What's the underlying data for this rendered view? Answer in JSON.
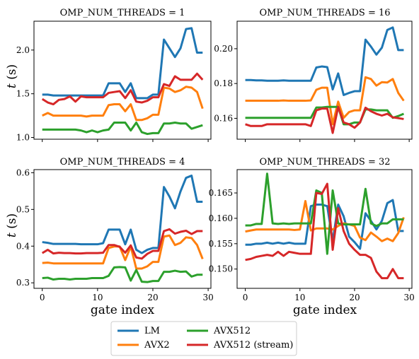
{
  "colors": {
    "LM": "#1f77b4",
    "AVX2": "#ff7f0e",
    "AVX512": "#2ca02c",
    "AVX512 (stream)": "#d62728"
  },
  "legend": {
    "items": [
      "LM",
      "AVX2",
      "AVX512",
      "AVX512 (stream)"
    ]
  },
  "chart_data": [
    {
      "type": "line",
      "title": "OMP_NUM_THREADS = 1",
      "ylabel": "t (s)",
      "xlabel": "",
      "xlim": [
        -1.5,
        30.5
      ],
      "ylim": [
        0.98,
        2.33
      ],
      "xticks": [
        0,
        10,
        20,
        30
      ],
      "yticks": [
        1.0,
        1.5,
        2.0
      ],
      "ytick_labels": [
        "1.0",
        "1.5",
        "2.0"
      ],
      "show_xtick_labels": false,
      "x": [
        0,
        1,
        2,
        3,
        4,
        5,
        6,
        7,
        8,
        9,
        10,
        11,
        12,
        13,
        14,
        15,
        16,
        17,
        18,
        19,
        20,
        21,
        22,
        23,
        24,
        25,
        26,
        27,
        28,
        29
      ],
      "series": [
        {
          "name": "LM",
          "values": [
            1.49,
            1.49,
            1.48,
            1.48,
            1.48,
            1.48,
            1.48,
            1.48,
            1.48,
            1.48,
            1.48,
            1.48,
            1.62,
            1.62,
            1.62,
            1.52,
            1.62,
            1.45,
            1.45,
            1.45,
            1.49,
            1.49,
            2.12,
            2.02,
            1.92,
            2.02,
            2.24,
            2.25,
            1.97,
            1.97
          ]
        },
        {
          "name": "AVX2",
          "values": [
            1.25,
            1.28,
            1.25,
            1.25,
            1.25,
            1.25,
            1.25,
            1.25,
            1.24,
            1.25,
            1.25,
            1.25,
            1.37,
            1.38,
            1.38,
            1.3,
            1.38,
            1.2,
            1.2,
            1.22,
            1.26,
            1.26,
            1.57,
            1.56,
            1.52,
            1.54,
            1.58,
            1.57,
            1.52,
            1.33
          ]
        },
        {
          "name": "AVX512",
          "values": [
            1.09,
            1.09,
            1.09,
            1.09,
            1.09,
            1.09,
            1.09,
            1.08,
            1.06,
            1.08,
            1.06,
            1.08,
            1.09,
            1.17,
            1.17,
            1.17,
            1.08,
            1.17,
            1.06,
            1.04,
            1.05,
            1.05,
            1.16,
            1.16,
            1.17,
            1.16,
            1.16,
            1.1,
            1.12,
            1.14
          ]
        },
        {
          "name": "AVX512 (stream)",
          "values": [
            1.44,
            1.4,
            1.38,
            1.43,
            1.44,
            1.47,
            1.41,
            1.47,
            1.46,
            1.46,
            1.46,
            1.46,
            1.51,
            1.52,
            1.53,
            1.45,
            1.54,
            1.41,
            1.4,
            1.42,
            1.46,
            1.46,
            1.61,
            1.59,
            1.7,
            1.66,
            1.66,
            1.66,
            1.73,
            1.66
          ]
        }
      ]
    },
    {
      "type": "line",
      "title": "OMP_NUM_THREADS = 16",
      "ylabel": "",
      "xlabel": "",
      "xlim": [
        -1.5,
        30.5
      ],
      "ylim": [
        0.148,
        0.2158
      ],
      "xticks": [
        0,
        10,
        20,
        30
      ],
      "yticks": [
        0.16,
        0.18,
        0.2
      ],
      "ytick_labels": [
        "0.16",
        "0.18",
        "0.20"
      ],
      "show_xtick_labels": false,
      "x": [
        0,
        1,
        2,
        3,
        4,
        5,
        6,
        7,
        8,
        9,
        10,
        11,
        12,
        13,
        14,
        15,
        16,
        17,
        18,
        19,
        20,
        21,
        22,
        23,
        24,
        25,
        26,
        27,
        28,
        29
      ],
      "series": [
        {
          "name": "LM",
          "values": [
            0.182,
            0.182,
            0.1818,
            0.1818,
            0.1816,
            0.1816,
            0.1816,
            0.1818,
            0.1816,
            0.1816,
            0.1816,
            0.1816,
            0.1816,
            0.1892,
            0.1898,
            0.1894,
            0.1766,
            0.1858,
            0.1734,
            0.1746,
            0.1756,
            0.1756,
            0.2052,
            0.2012,
            0.1966,
            0.2006,
            0.2108,
            0.2122,
            0.1992,
            0.1992
          ]
        },
        {
          "name": "AVX2",
          "values": [
            0.1701,
            0.1701,
            0.1701,
            0.1701,
            0.1701,
            0.1701,
            0.1701,
            0.1703,
            0.1701,
            0.1701,
            0.1701,
            0.1701,
            0.1703,
            0.1764,
            0.1776,
            0.1776,
            0.1566,
            0.1696,
            0.1603,
            0.1636,
            0.1646,
            0.1646,
            0.1836,
            0.1826,
            0.1788,
            0.1808,
            0.1806,
            0.1826,
            0.1746,
            0.1701
          ]
        },
        {
          "name": "AVX512",
          "values": [
            0.1603,
            0.1603,
            0.1603,
            0.1603,
            0.1603,
            0.1603,
            0.1603,
            0.1603,
            0.1603,
            0.1603,
            0.1603,
            0.1603,
            0.1603,
            0.1662,
            0.1662,
            0.1666,
            0.1666,
            0.1666,
            0.1566,
            0.1566,
            0.1576,
            0.1576,
            0.1651,
            0.1651,
            0.1646,
            0.1646,
            0.1646,
            0.1603,
            0.1613,
            0.1626
          ]
        },
        {
          "name": "AVX512 (stream)",
          "values": [
            0.1566,
            0.1556,
            0.1556,
            0.1556,
            0.1566,
            0.1566,
            0.1566,
            0.1566,
            0.1566,
            0.1566,
            0.1566,
            0.1566,
            0.1556,
            0.1646,
            0.1656,
            0.1656,
            0.1516,
            0.1666,
            0.1576,
            0.1566,
            0.1546,
            0.1576,
            0.1661,
            0.1641,
            0.1626,
            0.1616,
            0.1626,
            0.1606,
            0.1601,
            0.1596
          ]
        }
      ]
    },
    {
      "type": "line",
      "title": "OMP_NUM_THREADS = 4",
      "ylabel": "t (s)",
      "xlabel": "gate index",
      "xlim": [
        -1.5,
        30.5
      ],
      "ylim": [
        0.285,
        0.6085
      ],
      "xticks": [
        0,
        10,
        20,
        30
      ],
      "yticks": [
        0.3,
        0.4,
        0.5,
        0.6
      ],
      "ytick_labels": [
        "0.3",
        "0.4",
        "0.5",
        "0.6"
      ],
      "show_xtick_labels": true,
      "x": [
        0,
        1,
        2,
        3,
        4,
        5,
        6,
        7,
        8,
        9,
        10,
        11,
        12,
        13,
        14,
        15,
        16,
        17,
        18,
        19,
        20,
        21,
        22,
        23,
        24,
        25,
        26,
        27,
        28,
        29
      ],
      "series": [
        {
          "name": "LM",
          "values": [
            0.411,
            0.409,
            0.406,
            0.406,
            0.406,
            0.406,
            0.406,
            0.405,
            0.405,
            0.405,
            0.405,
            0.408,
            0.445,
            0.445,
            0.445,
            0.405,
            0.445,
            0.39,
            0.381,
            0.39,
            0.395,
            0.395,
            0.561,
            0.535,
            0.503,
            0.549,
            0.586,
            0.592,
            0.521,
            0.521
          ]
        },
        {
          "name": "AVX2",
          "values": [
            0.354,
            0.355,
            0.353,
            0.353,
            0.353,
            0.353,
            0.353,
            0.353,
            0.353,
            0.353,
            0.353,
            0.353,
            0.395,
            0.399,
            0.399,
            0.362,
            0.399,
            0.339,
            0.339,
            0.345,
            0.357,
            0.357,
            0.426,
            0.429,
            0.403,
            0.409,
            0.424,
            0.422,
            0.403,
            0.365
          ]
        },
        {
          "name": "AVX512",
          "values": [
            0.313,
            0.314,
            0.309,
            0.311,
            0.311,
            0.309,
            0.311,
            0.311,
            0.311,
            0.313,
            0.313,
            0.313,
            0.319,
            0.342,
            0.343,
            0.342,
            0.306,
            0.335,
            0.303,
            0.302,
            0.305,
            0.305,
            0.33,
            0.33,
            0.333,
            0.33,
            0.331,
            0.317,
            0.322,
            0.322
          ]
        },
        {
          "name": "AVX512 (stream)",
          "values": [
            0.381,
            0.39,
            0.38,
            0.382,
            0.381,
            0.381,
            0.38,
            0.38,
            0.381,
            0.381,
            0.381,
            0.382,
            0.403,
            0.403,
            0.398,
            0.382,
            0.402,
            0.369,
            0.366,
            0.379,
            0.387,
            0.387,
            0.441,
            0.446,
            0.434,
            0.439,
            0.442,
            0.433,
            0.441,
            0.441
          ]
        }
      ]
    },
    {
      "type": "line",
      "title": "OMP_NUM_THREADS = 32",
      "ylabel": "",
      "xlabel": "gate index",
      "xlim": [
        -1.5,
        30.5
      ],
      "ylim": [
        0.1462,
        0.1696
      ],
      "xticks": [
        0,
        10,
        20,
        30
      ],
      "yticks": [
        0.15,
        0.155,
        0.16,
        0.165
      ],
      "ytick_labels": [
        "0.150",
        "0.155",
        "0.160",
        "0.165"
      ],
      "show_xtick_labels": true,
      "x": [
        0,
        1,
        2,
        3,
        4,
        5,
        6,
        7,
        8,
        9,
        10,
        11,
        12,
        13,
        14,
        15,
        16,
        17,
        18,
        19,
        20,
        21,
        22,
        23,
        24,
        25,
        26,
        27,
        28,
        29
      ],
      "series": [
        {
          "name": "LM",
          "values": [
            0.1548,
            0.1548,
            0.155,
            0.155,
            0.1552,
            0.155,
            0.1552,
            0.155,
            0.1552,
            0.155,
            0.155,
            0.155,
            0.1624,
            0.1627,
            0.1627,
            0.1624,
            0.1555,
            0.1627,
            0.1604,
            0.1564,
            0.1553,
            0.154,
            0.161,
            0.1595,
            0.1578,
            0.1595,
            0.163,
            0.1636,
            0.1575,
            0.1575
          ]
        },
        {
          "name": "AVX2",
          "values": [
            0.1574,
            0.1576,
            0.1578,
            0.1578,
            0.1578,
            0.1578,
            0.1578,
            0.1578,
            0.1578,
            0.1577,
            0.1578,
            0.1634,
            0.1576,
            0.158,
            0.158,
            0.158,
            0.1578,
            0.1585,
            0.159,
            0.1588,
            0.1585,
            0.1562,
            0.1557,
            0.1572,
            0.1564,
            0.1555,
            0.156,
            0.1555,
            0.1571,
            0.1602
          ]
        },
        {
          "name": "AVX512",
          "values": [
            0.1586,
            0.1586,
            0.1589,
            0.1589,
            0.1688,
            0.159,
            0.1589,
            0.159,
            0.1589,
            0.159,
            0.159,
            0.159,
            0.159,
            0.1655,
            0.165,
            0.153,
            0.1655,
            0.159,
            0.1588,
            0.1588,
            0.1588,
            0.1588,
            0.1658,
            0.159,
            0.1585,
            0.159,
            0.159,
            0.1598,
            0.1598,
            0.1598
          ]
        },
        {
          "name": "AVX512 (stream)",
          "values": [
            0.1518,
            0.152,
            0.1524,
            0.1526,
            0.1528,
            0.1526,
            0.1534,
            0.1526,
            0.1534,
            0.1532,
            0.153,
            0.153,
            0.153,
            0.165,
            0.1648,
            0.1668,
            0.1538,
            0.162,
            0.1575,
            0.155,
            0.1538,
            0.1528,
            0.1528,
            0.1522,
            0.1495,
            0.1482,
            0.1482,
            0.15,
            0.1482,
            0.1482
          ]
        }
      ]
    }
  ]
}
